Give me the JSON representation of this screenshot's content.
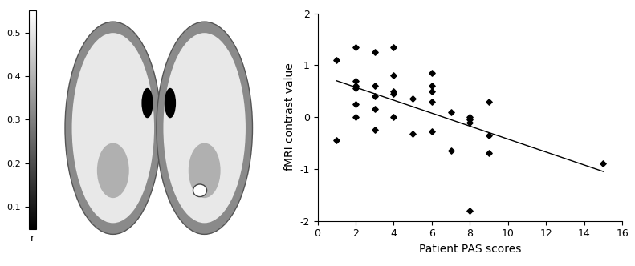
{
  "chart_data": {
    "type": "scatter",
    "x": [
      1,
      1,
      2,
      2,
      2,
      2,
      2,
      2,
      3,
      3,
      3,
      3,
      3,
      4,
      4,
      4,
      4,
      4,
      5,
      5,
      6,
      6,
      6,
      6,
      6,
      7,
      7,
      8,
      8,
      8,
      8,
      9,
      9,
      9,
      15
    ],
    "values": [
      1.1,
      -0.45,
      1.35,
      0.7,
      0.6,
      0.55,
      0.25,
      0.0,
      1.25,
      0.6,
      0.4,
      0.15,
      -0.25,
      1.35,
      0.8,
      0.5,
      0.45,
      0.0,
      0.35,
      -0.32,
      0.85,
      0.6,
      0.5,
      0.3,
      -0.28,
      0.1,
      -0.65,
      0.0,
      -0.05,
      -0.1,
      -1.8,
      0.3,
      -0.35,
      -0.7,
      -0.9
    ],
    "trend_line": {
      "x": [
        1,
        15
      ],
      "y": [
        0.7,
        -1.05
      ]
    },
    "x_label": "Patient PAS scores",
    "y_label": "fMRI contrast value",
    "xlim": [
      0,
      16
    ],
    "xticks": [
      0,
      2,
      4,
      6,
      8,
      10,
      12,
      14,
      16
    ],
    "ylim": [
      -2,
      2
    ],
    "yticks": [
      -2,
      -1,
      0,
      1,
      2
    ],
    "color": "#000000",
    "marker": "diamond",
    "grid": false
  },
  "colorbar": {
    "label": "r",
    "range": [
      0.05,
      0.55
    ],
    "ticks": [
      0.1,
      0.2,
      0.3,
      0.4,
      0.5
    ]
  }
}
